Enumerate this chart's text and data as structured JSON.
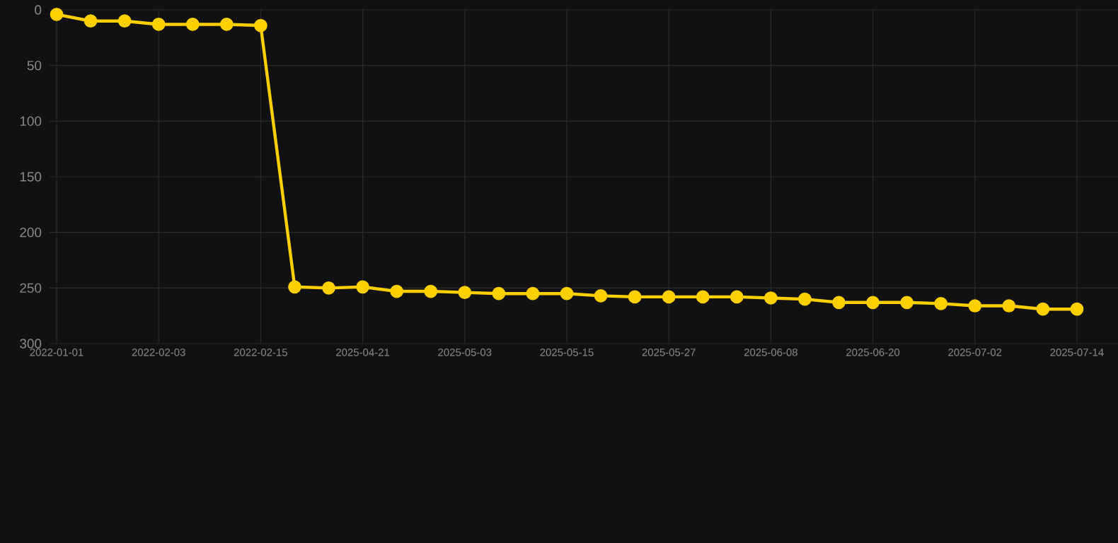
{
  "chart_data": {
    "type": "line",
    "categories": [
      "2022-01-01",
      null,
      null,
      "2022-02-03",
      null,
      null,
      "2022-02-15",
      null,
      null,
      "2025-04-21",
      null,
      null,
      "2025-05-03",
      null,
      null,
      "2025-05-15",
      null,
      null,
      "2025-05-27",
      null,
      null,
      "2025-06-08",
      null,
      null,
      "2025-06-20",
      null,
      null,
      "2025-07-02",
      null,
      null,
      "2025-07-14"
    ],
    "values": [
      4,
      10,
      10,
      13,
      13,
      13,
      14,
      249,
      250,
      249,
      253,
      253,
      254,
      255,
      255,
      255,
      257,
      258,
      258,
      258,
      258,
      259,
      260,
      263,
      263,
      263,
      264,
      266,
      266,
      269,
      269
    ],
    "color": "#ffd000",
    "ylim": [
      300,
      0
    ],
    "yticks": [
      0,
      50,
      100,
      150,
      200,
      250,
      300
    ],
    "grid": true,
    "marker": "circle",
    "line_style": "solid"
  }
}
